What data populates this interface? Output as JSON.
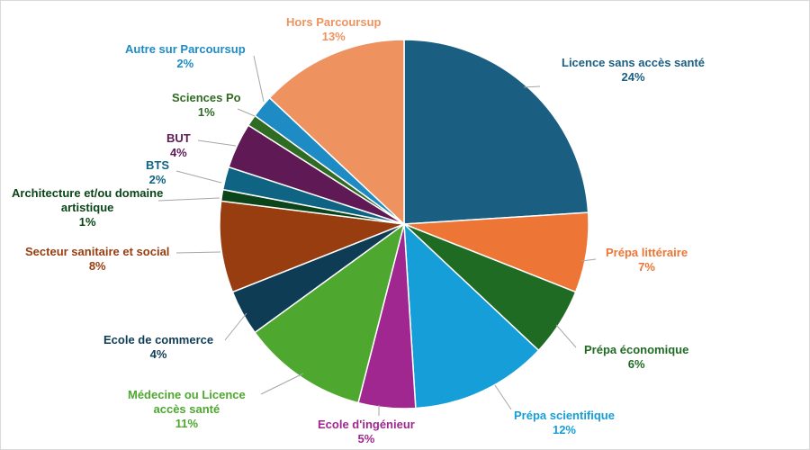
{
  "chart_data": {
    "type": "pie",
    "title": "",
    "unit": "%",
    "slices": [
      {
        "label": "Licence sans accès santé",
        "value": 24,
        "display": "24%",
        "color": "#1A5F82"
      },
      {
        "label": "Prépa littéraire",
        "value": 7,
        "display": "7%",
        "color": "#ED7535"
      },
      {
        "label": "Prépa économique",
        "value": 6,
        "display": "6%",
        "color": "#1F6B24"
      },
      {
        "label": "Prépa scientifique",
        "value": 12,
        "display": "12%",
        "color": "#159ED8"
      },
      {
        "label": "Ecole d'ingénieur",
        "value": 5,
        "display": "5%",
        "color": "#A0278F"
      },
      {
        "label": "Médecine ou Licence\naccès santé",
        "value": 11,
        "display": "11%",
        "color": "#4EA72E"
      },
      {
        "label": "Ecole de commerce",
        "value": 4,
        "display": "4%",
        "color": "#0F3C55"
      },
      {
        "label": "Secteur sanitaire et social",
        "value": 8,
        "display": "8%",
        "color": "#983D10"
      },
      {
        "label": "Architecture et/ou domaine\nartistique",
        "value": 1,
        "display": "1%",
        "color": "#0A4418"
      },
      {
        "label": "BTS",
        "value": 2,
        "display": "2%",
        "color": "#0F6483"
      },
      {
        "label": "BUT",
        "value": 4,
        "display": "4%",
        "color": "#5F1A55"
      },
      {
        "label": "Sciences Po",
        "value": 1,
        "display": "1%",
        "color": "#2F6B22"
      },
      {
        "label": "Autre sur Parcoursup",
        "value": 2,
        "display": "2%",
        "color": "#1E8BC4"
      },
      {
        "label": "Hors Parcoursup",
        "value": 13,
        "display": "13%",
        "color": "#EE9360"
      }
    ]
  }
}
